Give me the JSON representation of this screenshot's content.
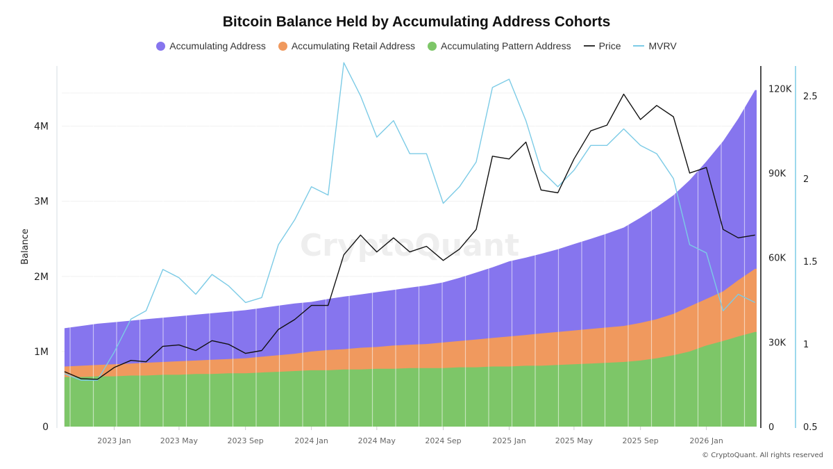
{
  "chart_data": {
    "type": "area",
    "title": "Bitcoin Balance Held by Accumulating Address Cohorts",
    "ylabel": "Balance",
    "watermark": "CryptoQuant",
    "footer": "© CryptoQuant. All rights reserved",
    "xlim": [
      "2022-09-26",
      "2026-04-04"
    ],
    "x_ticks": [
      {
        "date": "2023-01-01",
        "label": "2023 Jan"
      },
      {
        "date": "2023-05-01",
        "label": "2023 May"
      },
      {
        "date": "2023-09-01",
        "label": "2023 Sep"
      },
      {
        "date": "2024-01-01",
        "label": "2024 Jan"
      },
      {
        "date": "2024-05-01",
        "label": "2024 May"
      },
      {
        "date": "2024-09-01",
        "label": "2024 Sep"
      },
      {
        "date": "2025-01-01",
        "label": "2025 Jan"
      },
      {
        "date": "2025-05-01",
        "label": "2025 May"
      },
      {
        "date": "2025-09-01",
        "label": "2025 Sep"
      },
      {
        "date": "2026-01-01",
        "label": "2026 Jan"
      }
    ],
    "y_left": {
      "ylim": [
        0,
        4800000
      ],
      "ticks": [
        0,
        1000000,
        2000000,
        3000000,
        4000000
      ],
      "tick_labels": [
        "0",
        "1M",
        "2M",
        "3M",
        "4M"
      ]
    },
    "y_price": {
      "ylim": [
        0,
        128000
      ],
      "ticks": [
        0,
        30000,
        60000,
        90000,
        120000
      ],
      "tick_labels": [
        "0",
        "30K",
        "60K",
        "90K",
        "120K"
      ],
      "color": "#111111"
    },
    "y_mvrv": {
      "ylim": [
        0.5,
        2.68
      ],
      "ticks": [
        0.5,
        1,
        1.5,
        2,
        2.5
      ],
      "tick_labels": [
        "0.5",
        "1",
        "1.5",
        "2",
        "2.5"
      ],
      "color": "#7ccbe6"
    },
    "grid": true,
    "legend_placement": "top",
    "x": [
      "2022-10-01",
      "2022-11-01",
      "2022-12-01",
      "2023-01-01",
      "2023-02-01",
      "2023-03-01",
      "2023-04-01",
      "2023-05-01",
      "2023-06-01",
      "2023-07-01",
      "2023-08-01",
      "2023-09-01",
      "2023-10-01",
      "2023-11-01",
      "2023-12-01",
      "2024-01-01",
      "2024-02-01",
      "2024-03-01",
      "2024-04-01",
      "2024-05-01",
      "2024-06-01",
      "2024-07-01",
      "2024-08-01",
      "2024-09-01",
      "2024-10-01",
      "2024-11-01",
      "2024-12-01",
      "2025-01-01",
      "2025-02-01",
      "2025-03-01",
      "2025-04-01",
      "2025-05-01",
      "2025-06-01",
      "2025-07-01",
      "2025-08-01",
      "2025-09-01",
      "2025-10-01",
      "2025-11-01",
      "2025-12-01",
      "2026-01-01",
      "2026-02-01",
      "2026-03-01",
      "2026-04-01"
    ],
    "series": [
      {
        "name": "Accumulating Address",
        "axis": "left",
        "kind": "area",
        "color": "#8675ee",
        "values": [
          1310000,
          1340000,
          1370000,
          1390000,
          1410000,
          1430000,
          1450000,
          1470000,
          1490000,
          1510000,
          1530000,
          1550000,
          1580000,
          1610000,
          1640000,
          1660000,
          1700000,
          1730000,
          1760000,
          1790000,
          1820000,
          1850000,
          1880000,
          1920000,
          1980000,
          2050000,
          2120000,
          2200000,
          2250000,
          2300000,
          2360000,
          2430000,
          2500000,
          2570000,
          2650000,
          2780000,
          2920000,
          3080000,
          3280000,
          3530000,
          3800000,
          4100000,
          4480000
        ]
      },
      {
        "name": "Accumulating Retail Address",
        "axis": "left",
        "kind": "area",
        "color": "#f0995e",
        "values": [
          800000,
          810000,
          820000,
          830000,
          840000,
          850000,
          860000,
          870000,
          880000,
          890000,
          900000,
          910000,
          930000,
          950000,
          970000,
          1000000,
          1020000,
          1030000,
          1050000,
          1060000,
          1080000,
          1090000,
          1100000,
          1120000,
          1140000,
          1160000,
          1180000,
          1200000,
          1220000,
          1240000,
          1260000,
          1280000,
          1300000,
          1320000,
          1340000,
          1380000,
          1430000,
          1500000,
          1600000,
          1700000,
          1800000,
          1950000,
          2100000
        ]
      },
      {
        "name": "Accumulating Pattern Address",
        "axis": "left",
        "kind": "area",
        "color": "#7dc668",
        "values": [
          660000,
          660000,
          670000,
          670000,
          680000,
          680000,
          690000,
          690000,
          700000,
          700000,
          710000,
          710000,
          720000,
          730000,
          740000,
          750000,
          750000,
          760000,
          760000,
          770000,
          770000,
          780000,
          780000,
          780000,
          790000,
          790000,
          800000,
          800000,
          810000,
          810000,
          820000,
          830000,
          840000,
          850000,
          860000,
          880000,
          910000,
          950000,
          1000000,
          1080000,
          1140000,
          1200000,
          1260000
        ]
      },
      {
        "name": "Price",
        "axis": "price",
        "kind": "line",
        "color": "#111111",
        "values": [
          19500,
          17000,
          16800,
          21000,
          23500,
          23000,
          28500,
          29000,
          27000,
          30500,
          29200,
          26000,
          27000,
          34500,
          38000,
          43000,
          43000,
          61000,
          68000,
          62000,
          67000,
          62000,
          64000,
          59000,
          63000,
          70000,
          96000,
          95000,
          101000,
          84000,
          83000,
          95000,
          105000,
          107000,
          118000,
          109000,
          114000,
          110000,
          90000,
          92000,
          70000,
          67000,
          68000
        ]
      },
      {
        "name": "MVRV",
        "axis": "mvrv",
        "kind": "line",
        "color": "#7ccbe6",
        "values": [
          0.82,
          0.78,
          0.78,
          0.95,
          1.15,
          1.2,
          1.45,
          1.4,
          1.3,
          1.42,
          1.35,
          1.25,
          1.28,
          1.6,
          1.75,
          1.95,
          1.9,
          2.7,
          2.5,
          2.25,
          2.35,
          2.15,
          2.15,
          1.85,
          1.95,
          2.1,
          2.55,
          2.6,
          2.35,
          2.05,
          1.95,
          2.05,
          2.2,
          2.2,
          2.3,
          2.2,
          2.15,
          2.0,
          1.6,
          1.55,
          1.2,
          1.3,
          1.25
        ]
      }
    ]
  }
}
